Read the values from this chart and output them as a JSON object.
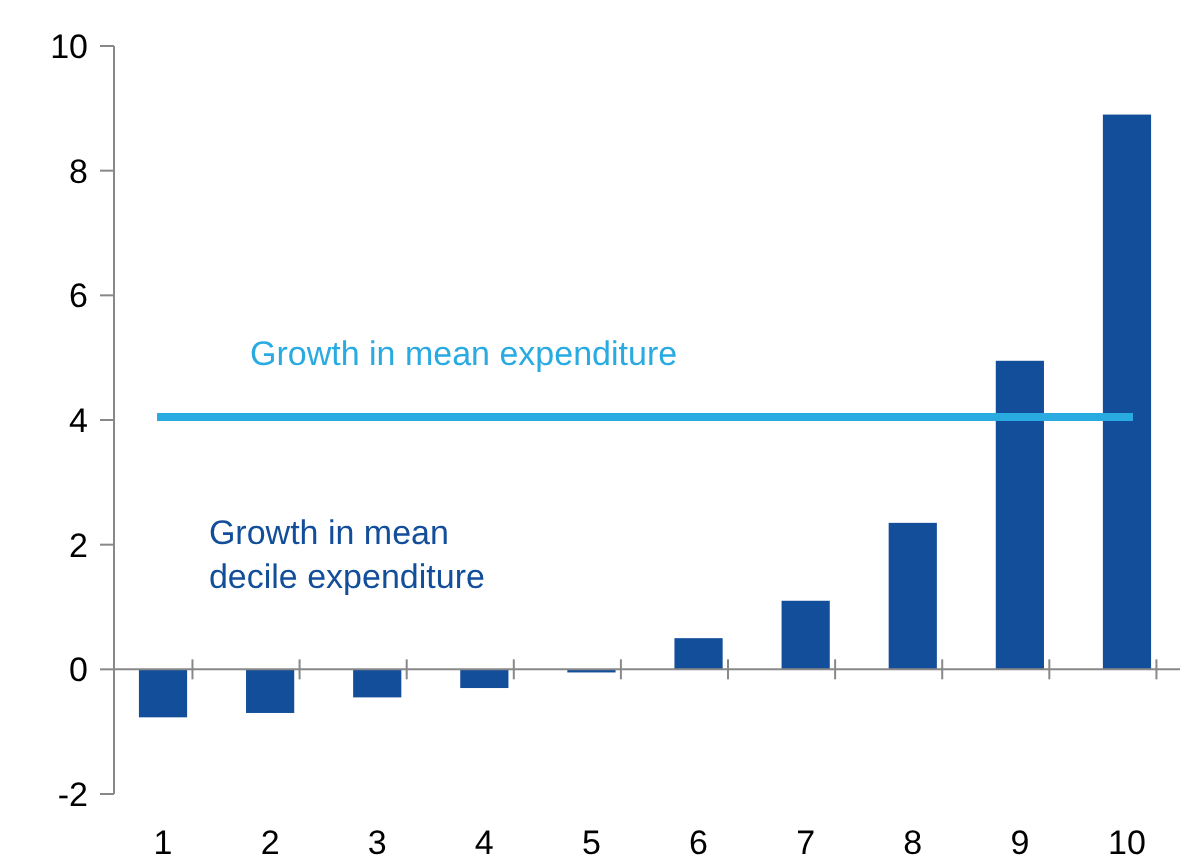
{
  "chart_data": {
    "type": "bar",
    "categories": [
      "1",
      "2",
      "3",
      "4",
      "5",
      "6",
      "7",
      "8",
      "9",
      "10"
    ],
    "series": [
      {
        "name": "Growth in mean decile expenditure",
        "color": "#124e9a",
        "values": [
          -0.77,
          -0.7,
          -0.45,
          -0.3,
          -0.05,
          0.5,
          1.1,
          2.35,
          4.95,
          8.9
        ]
      }
    ],
    "ylim": [
      -2,
      10
    ],
    "yticks": [
      -2,
      0,
      2,
      4,
      6,
      8,
      10
    ],
    "ref_lines": [
      {
        "axis": "y",
        "value": 4.05,
        "label": "Growth in mean expenditure",
        "color": "#29abe2"
      }
    ]
  }
}
